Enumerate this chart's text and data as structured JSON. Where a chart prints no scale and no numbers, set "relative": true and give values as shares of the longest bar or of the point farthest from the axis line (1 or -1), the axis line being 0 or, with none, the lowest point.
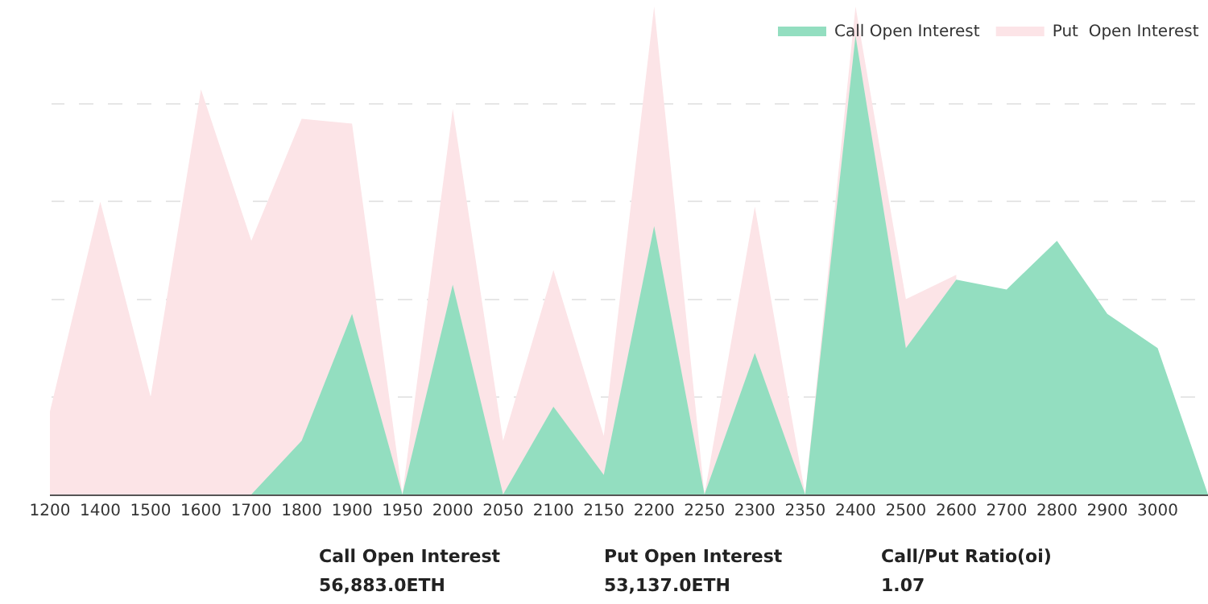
{
  "chart_data": {
    "type": "area",
    "relative": true,
    "grid": "y",
    "legend": "top right",
    "categories": [
      "1200",
      "1400",
      "1500",
      "1600",
      "1700",
      "1800",
      "1900",
      "1950",
      "2000",
      "2050",
      "2100",
      "2150",
      "2200",
      "2250",
      "2300",
      "2350",
      "2400",
      "2500",
      "2600",
      "2700",
      "2800",
      "2900",
      "3000",
      null
    ],
    "series": [
      {
        "name": "Put  Open Interest",
        "color": "#fce4e7",
        "values": [
          0.17,
          0.6,
          0.2,
          0.83,
          0.52,
          0.77,
          0.76,
          0,
          0.79,
          0.11,
          0.46,
          0.12,
          1.0,
          0,
          0.59,
          0,
          1.0,
          0.4,
          0.45,
          null,
          null,
          null,
          null,
          null
        ]
      },
      {
        "name": "Call Open Interest",
        "color": "#93dec0",
        "values": [
          0,
          0,
          0,
          0,
          0,
          0.11,
          0.37,
          0,
          0.43,
          0,
          0.18,
          0.04,
          0.55,
          0,
          0.29,
          0,
          0.94,
          0.3,
          0.44,
          0.42,
          0.52,
          0.37,
          0.3,
          0
        ]
      }
    ],
    "annotations": [
      "Call Open Interest",
      "56,883.0ETH",
      "Put Open Interest",
      "53,137.0ETH",
      "Call/Put Ratio(oi)",
      "1.07"
    ]
  }
}
